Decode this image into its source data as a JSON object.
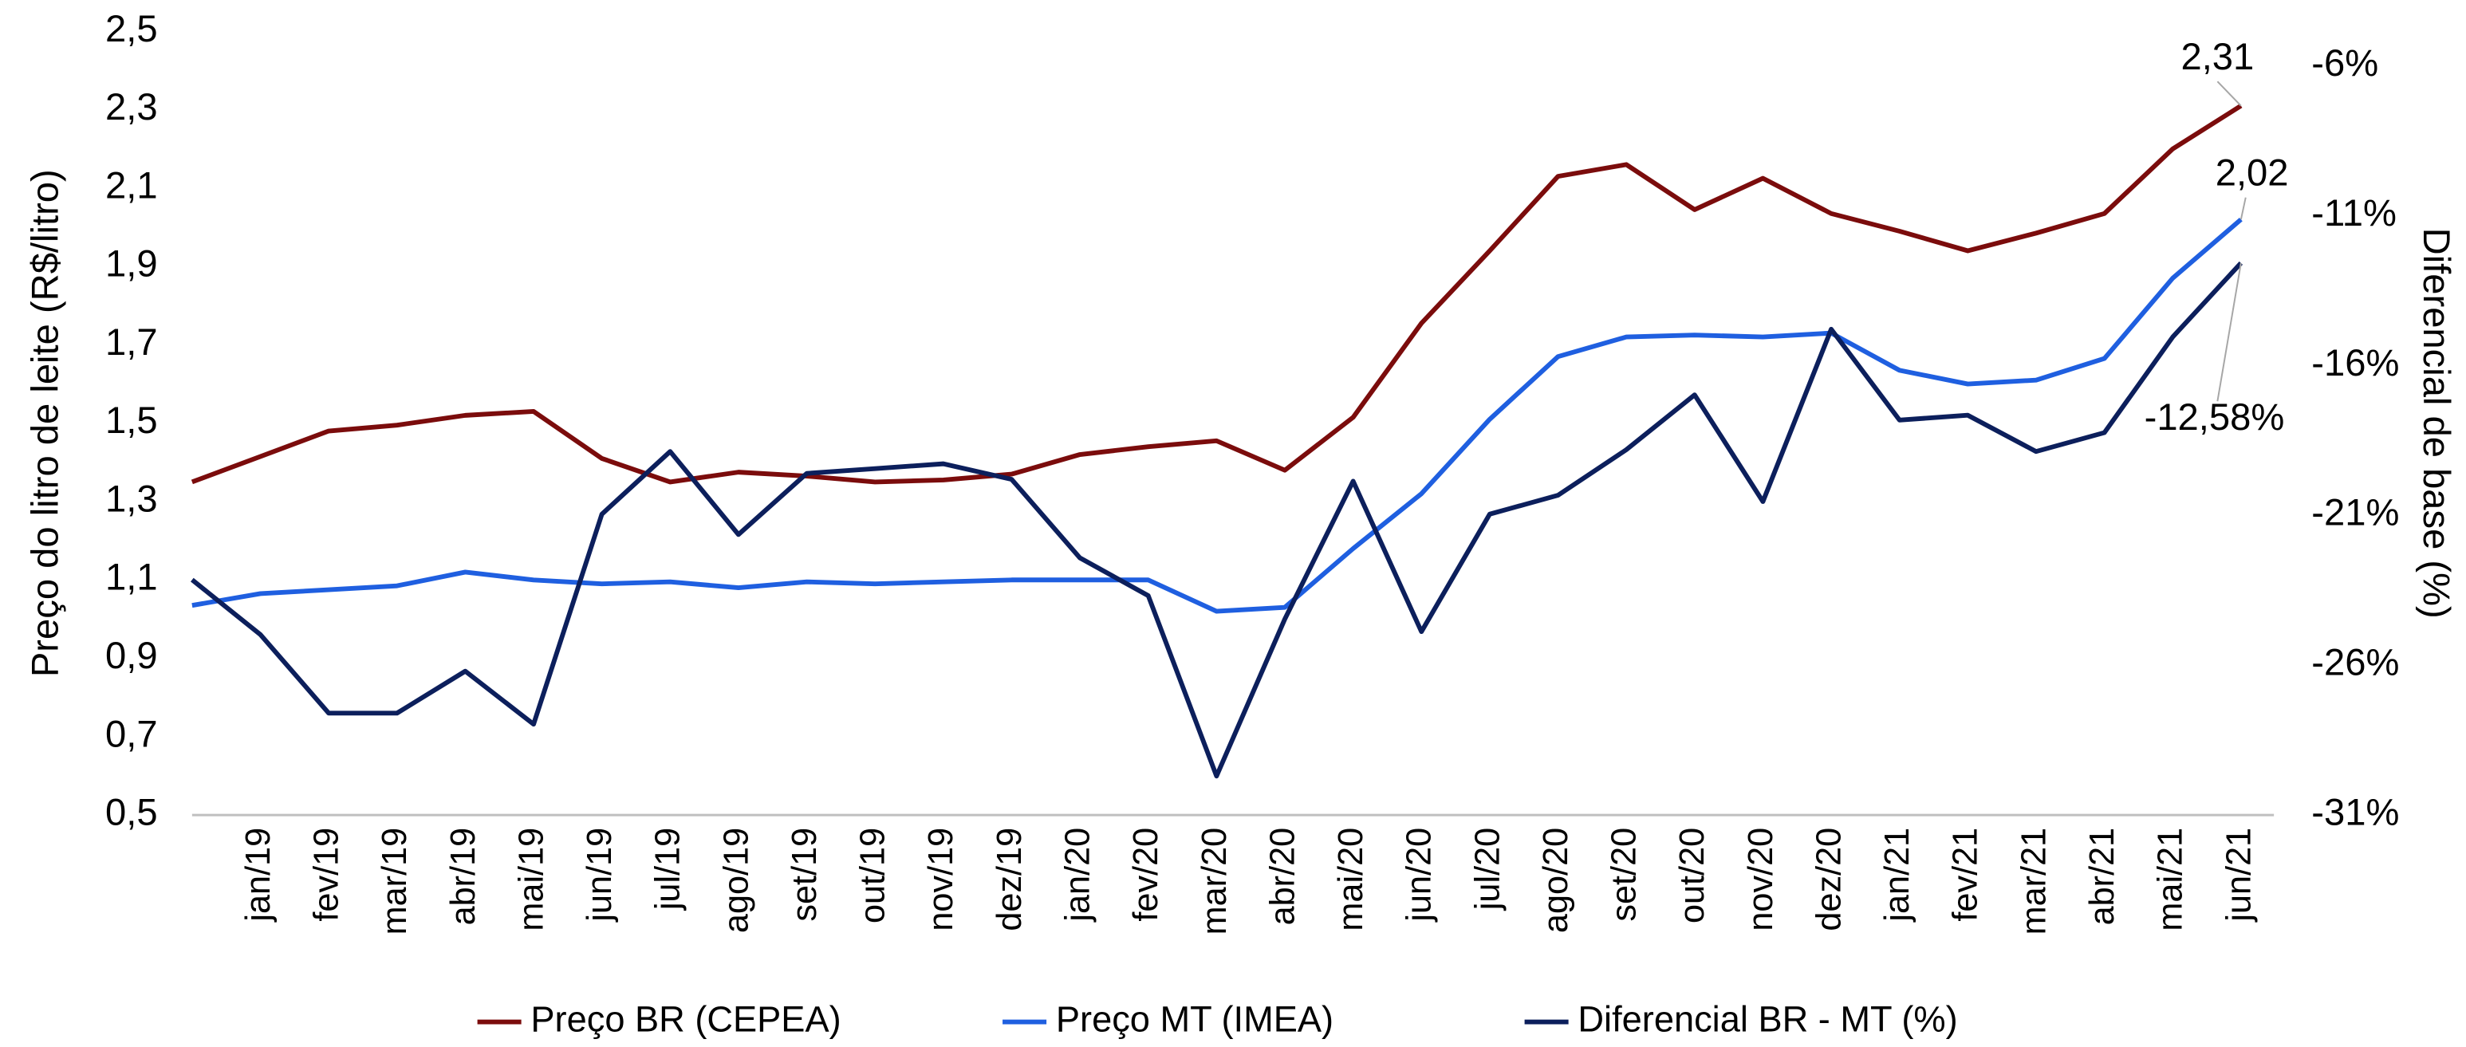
{
  "chart_data": {
    "type": "line",
    "y_label": "Preço do litro de leite (R$/litro)",
    "y2_label": "Diferencial de base (%)",
    "categories": [
      null,
      "jan/19",
      "fev/19",
      "mar/19",
      "abr/19",
      "mai/19",
      "jun/19",
      "jul/19",
      "ago/19",
      "set/19",
      "out/19",
      "nov/19",
      "dez/19",
      "jan/20",
      "fev/20",
      "mar/20",
      "abr/20",
      "mai/20",
      "jun/20",
      "jul/20",
      "ago/20",
      "set/20",
      "out/20",
      "nov/20",
      "dez/20",
      "jan/21",
      "fev/21",
      "mar/21",
      "abr/21",
      "mai/21",
      "jun/21"
    ],
    "ylim": [
      0.5,
      2.5
    ],
    "yticks": [
      {
        "value": 0.5,
        "label": "0,5"
      },
      {
        "value": 0.7,
        "label": "0,7"
      },
      {
        "value": 0.9,
        "label": "0,9"
      },
      {
        "value": 1.1,
        "label": "1,1"
      },
      {
        "value": 1.3,
        "label": "1,3"
      },
      {
        "value": 1.5,
        "label": "1,5"
      },
      {
        "value": 1.7,
        "label": "1,7"
      },
      {
        "value": 1.9,
        "label": "1,9"
      },
      {
        "value": 2.1,
        "label": "2,1"
      },
      {
        "value": 2.3,
        "label": "2,3"
      },
      {
        "value": 2.5,
        "label": "2,5"
      }
    ],
    "y2lim": [
      -31,
      -4.85
    ],
    "y2ticks": [
      {
        "value": -31,
        "label": "-31%"
      },
      {
        "value": -26,
        "label": "-26%"
      },
      {
        "value": -21,
        "label": "-21%"
      },
      {
        "value": -16,
        "label": "-16%"
      },
      {
        "value": -11,
        "label": "-11%"
      },
      {
        "value": -6,
        "label": "-6%"
      }
    ],
    "legend": "bottom",
    "series": [
      {
        "name": "Preço BR (CEPEA)",
        "color": "#7b0c0c",
        "values": [
          1.35,
          1.415,
          1.48,
          1.495,
          1.52,
          1.53,
          1.41,
          1.35,
          1.375,
          1.365,
          1.35,
          1.355,
          1.37,
          1.42,
          1.44,
          1.455,
          1.38,
          1.515,
          1.755,
          1.94,
          2.13,
          2.16,
          2.045,
          2.125,
          2.035,
          1.99,
          1.94,
          1.985,
          2.035,
          2.2,
          2.31
        ],
        "value_labels": [
          null,
          null,
          null,
          null,
          null,
          null,
          null,
          null,
          null,
          null,
          null,
          null,
          null,
          null,
          null,
          null,
          null,
          null,
          null,
          null,
          null,
          null,
          null,
          null,
          null,
          null,
          null,
          null,
          null,
          null,
          "2,31"
        ]
      },
      {
        "name": "Preço MT (IMEA)",
        "color": "#1f5fe0",
        "values": [
          1.035,
          1.065,
          1.075,
          1.085,
          1.12,
          1.1,
          1.09,
          1.095,
          1.08,
          1.095,
          1.09,
          1.095,
          1.1,
          1.1,
          1.1,
          1.02,
          1.03,
          1.18,
          1.32,
          1.51,
          1.67,
          1.72,
          1.725,
          1.72,
          1.73,
          1.635,
          1.6,
          1.61,
          1.665,
          1.87,
          2.02
        ],
        "value_labels": [
          null,
          null,
          null,
          null,
          null,
          null,
          null,
          null,
          null,
          null,
          null,
          null,
          null,
          null,
          null,
          null,
          null,
          null,
          null,
          null,
          null,
          null,
          null,
          null,
          null,
          null,
          null,
          null,
          null,
          null,
          "2,02"
        ]
      },
      {
        "name": "Diferencial BR - MT (%)",
        "color": "#0c1f5c",
        "axis": "y2",
        "values": [
          -23.15,
          -24.98,
          -27.6,
          -27.6,
          -26.2,
          -27.97,
          -20.96,
          -18.87,
          -21.64,
          -19.6,
          -19.44,
          -19.28,
          -19.8,
          -22.42,
          -23.68,
          -29.7,
          -24.46,
          -19.86,
          -24.88,
          -20.96,
          -20.33,
          -18.81,
          -16.98,
          -20.54,
          -14.79,
          -17.82,
          -17.66,
          -18.87,
          -18.24,
          -15.05,
          -12.58
        ],
        "value_labels": [
          null,
          null,
          null,
          null,
          null,
          null,
          null,
          null,
          null,
          null,
          null,
          null,
          null,
          null,
          null,
          null,
          null,
          null,
          null,
          null,
          null,
          null,
          null,
          null,
          null,
          null,
          null,
          null,
          null,
          null,
          "-12,58%"
        ]
      }
    ]
  }
}
